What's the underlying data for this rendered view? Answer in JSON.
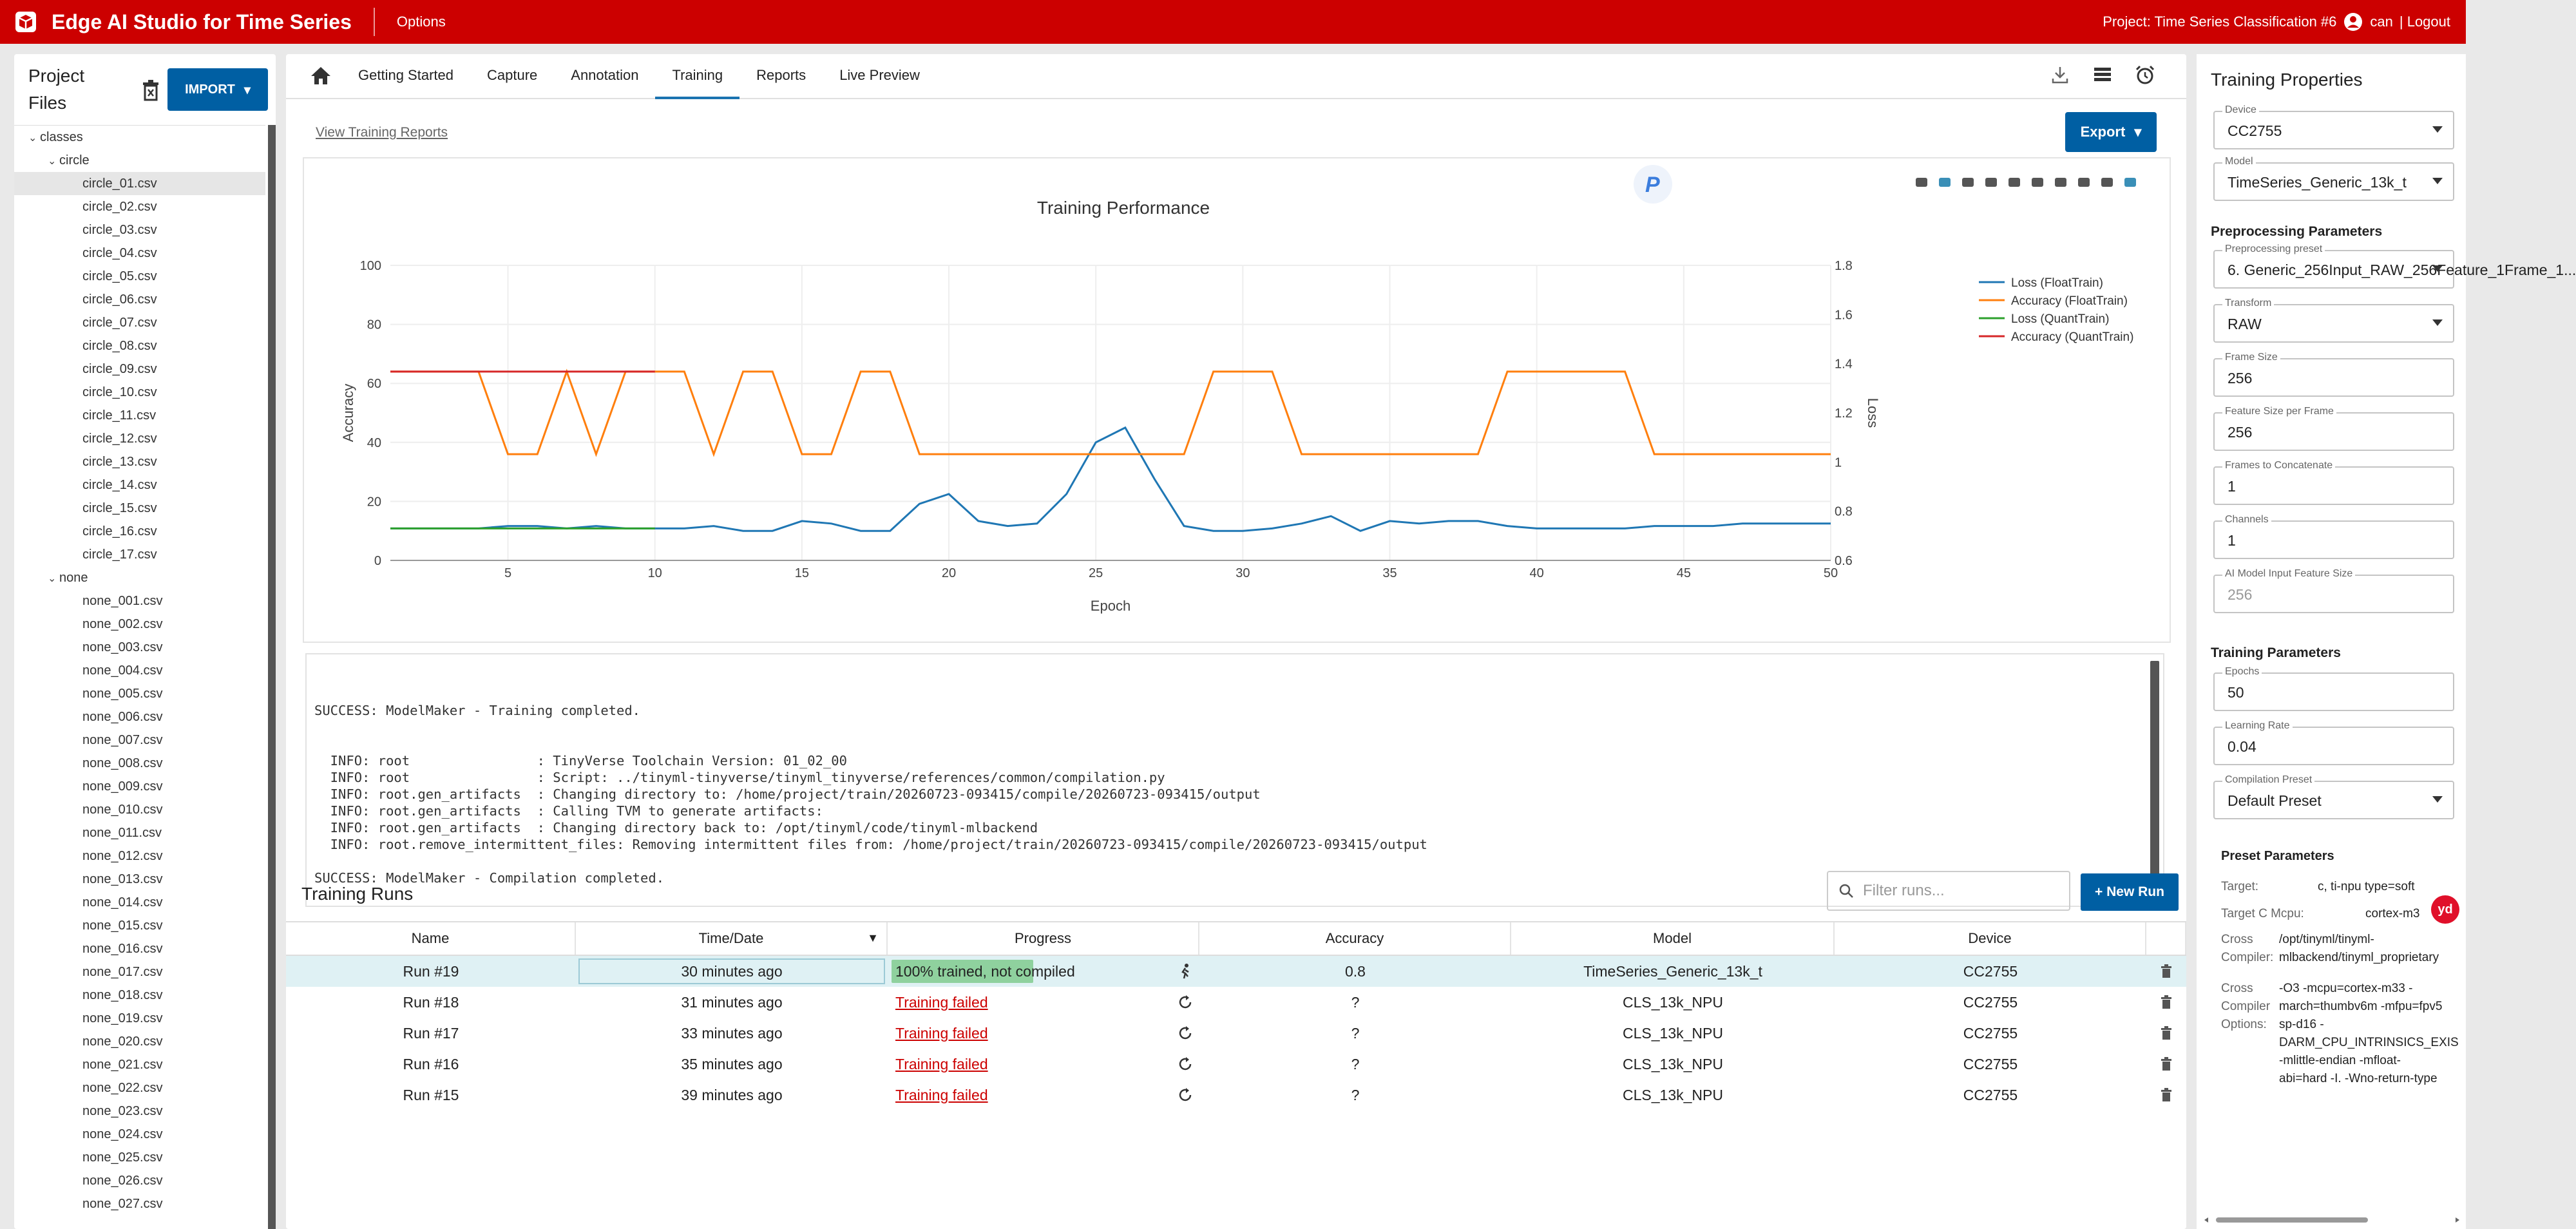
{
  "app": {
    "title": "Edge AI Studio for Time Series",
    "options_label": "Options",
    "project_label": "Project: Time Series Classification #6",
    "user_label": "can",
    "logout_label": "| Logout"
  },
  "colors": {
    "brand_red": "#cc0000",
    "primary_blue": "#005fa3",
    "success_green": "#8fd19e",
    "fail_red": "#cc0000",
    "loss_float": "#1f77b4",
    "accuracy_float": "#ff7f0e",
    "loss_quant": "#2ca02c",
    "accuracy_quant": "#d62728"
  },
  "left_panel": {
    "title_line1": "Project",
    "title_line2": "Files",
    "import_label": "IMPORT",
    "tree": [
      {
        "label": "classes",
        "depth": 0,
        "folder": true
      },
      {
        "label": "circle",
        "depth": 1,
        "folder": true
      },
      {
        "label": "circle_01.csv",
        "depth": 2,
        "selected": true
      },
      {
        "label": "circle_02.csv",
        "depth": 2
      },
      {
        "label": "circle_03.csv",
        "depth": 2
      },
      {
        "label": "circle_04.csv",
        "depth": 2
      },
      {
        "label": "circle_05.csv",
        "depth": 2
      },
      {
        "label": "circle_06.csv",
        "depth": 2
      },
      {
        "label": "circle_07.csv",
        "depth": 2
      },
      {
        "label": "circle_08.csv",
        "depth": 2
      },
      {
        "label": "circle_09.csv",
        "depth": 2
      },
      {
        "label": "circle_10.csv",
        "depth": 2
      },
      {
        "label": "circle_11.csv",
        "depth": 2
      },
      {
        "label": "circle_12.csv",
        "depth": 2
      },
      {
        "label": "circle_13.csv",
        "depth": 2
      },
      {
        "label": "circle_14.csv",
        "depth": 2
      },
      {
        "label": "circle_15.csv",
        "depth": 2
      },
      {
        "label": "circle_16.csv",
        "depth": 2
      },
      {
        "label": "circle_17.csv",
        "depth": 2
      },
      {
        "label": "none",
        "depth": 1,
        "folder": true
      },
      {
        "label": "none_001.csv",
        "depth": 2
      },
      {
        "label": "none_002.csv",
        "depth": 2
      },
      {
        "label": "none_003.csv",
        "depth": 2
      },
      {
        "label": "none_004.csv",
        "depth": 2
      },
      {
        "label": "none_005.csv",
        "depth": 2
      },
      {
        "label": "none_006.csv",
        "depth": 2
      },
      {
        "label": "none_007.csv",
        "depth": 2
      },
      {
        "label": "none_008.csv",
        "depth": 2
      },
      {
        "label": "none_009.csv",
        "depth": 2
      },
      {
        "label": "none_010.csv",
        "depth": 2
      },
      {
        "label": "none_011.csv",
        "depth": 2
      },
      {
        "label": "none_012.csv",
        "depth": 2
      },
      {
        "label": "none_013.csv",
        "depth": 2
      },
      {
        "label": "none_014.csv",
        "depth": 2
      },
      {
        "label": "none_015.csv",
        "depth": 2
      },
      {
        "label": "none_016.csv",
        "depth": 2
      },
      {
        "label": "none_017.csv",
        "depth": 2
      },
      {
        "label": "none_018.csv",
        "depth": 2
      },
      {
        "label": "none_019.csv",
        "depth": 2
      },
      {
        "label": "none_020.csv",
        "depth": 2
      },
      {
        "label": "none_021.csv",
        "depth": 2
      },
      {
        "label": "none_022.csv",
        "depth": 2
      },
      {
        "label": "none_023.csv",
        "depth": 2
      },
      {
        "label": "none_024.csv",
        "depth": 2
      },
      {
        "label": "none_025.csv",
        "depth": 2
      },
      {
        "label": "none_026.csv",
        "depth": 2
      },
      {
        "label": "none_027.csv",
        "depth": 2
      }
    ]
  },
  "nav": {
    "tabs": [
      "Getting Started",
      "Capture",
      "Annotation",
      "Training",
      "Reports",
      "Live Preview"
    ],
    "active_tab": "Training",
    "view_reports_label": "View Training Reports",
    "export_label": "Export"
  },
  "chart_data": {
    "type": "line",
    "title": "Training Performance",
    "xlabel": "Epoch",
    "ylabel": "Accuracy",
    "y2label": "Loss",
    "xlim": [
      1,
      50
    ],
    "ylim": [
      0,
      100
    ],
    "y2lim": [
      0.6,
      1.8
    ],
    "xticks": [
      5,
      10,
      15,
      20,
      25,
      30,
      35,
      40,
      45,
      50
    ],
    "yticks": [
      0,
      20,
      40,
      60,
      80,
      100
    ],
    "y2ticks": [
      0.6,
      0.8,
      1,
      1.2,
      1.4,
      1.6,
      1.8
    ],
    "grid": true,
    "legend_position": "top-right",
    "series": [
      {
        "name": "Loss (FloatTrain)",
        "axis": "y2",
        "x": [
          1,
          2,
          3,
          4,
          5,
          6,
          7,
          8,
          9,
          10,
          11,
          12,
          13,
          14,
          15,
          16,
          17,
          18,
          19,
          20,
          21,
          22,
          23,
          24,
          25,
          26,
          27,
          28,
          29,
          30,
          31,
          32,
          33,
          34,
          35,
          36,
          37,
          38,
          39,
          40,
          41,
          42,
          43,
          44,
          45,
          46,
          47,
          48,
          49,
          50
        ],
        "values": [
          0.73,
          0.73,
          0.73,
          0.73,
          0.74,
          0.74,
          0.73,
          0.74,
          0.73,
          0.73,
          0.73,
          0.74,
          0.72,
          0.72,
          0.76,
          0.75,
          0.72,
          0.72,
          0.83,
          0.87,
          0.76,
          0.74,
          0.75,
          0.87,
          1.08,
          1.14,
          0.93,
          0.74,
          0.72,
          0.72,
          0.73,
          0.75,
          0.78,
          0.72,
          0.76,
          0.75,
          0.76,
          0.76,
          0.74,
          0.73,
          0.73,
          0.73,
          0.73,
          0.74,
          0.74,
          0.74,
          0.75,
          0.75,
          0.75,
          0.75
        ]
      },
      {
        "name": "Accuracy (FloatTrain)",
        "axis": "y",
        "x": [
          1,
          2,
          3,
          4,
          5,
          6,
          7,
          8,
          9,
          10,
          11,
          12,
          13,
          14,
          15,
          16,
          17,
          18,
          19,
          20,
          21,
          22,
          23,
          24,
          25,
          26,
          27,
          28,
          29,
          30,
          31,
          32,
          33,
          34,
          35,
          36,
          37,
          38,
          39,
          40,
          41,
          42,
          43,
          44,
          45,
          46,
          47,
          48,
          49,
          50
        ],
        "values": [
          64,
          64,
          64,
          64,
          36,
          36,
          64,
          36,
          64,
          64,
          64,
          36,
          64,
          64,
          36,
          36,
          64,
          64,
          36,
          36,
          36,
          36,
          36,
          36,
          36,
          36,
          36,
          36,
          64,
          64,
          64,
          36,
          36,
          36,
          36,
          36,
          36,
          36,
          64,
          64,
          64,
          64,
          64,
          36,
          36,
          36,
          36,
          36,
          36,
          36
        ]
      },
      {
        "name": "Loss (QuantTrain)",
        "axis": "y2",
        "x": [
          1,
          2,
          3,
          4,
          5,
          6,
          7,
          8,
          9,
          10
        ],
        "values": [
          0.73,
          0.73,
          0.73,
          0.73,
          0.73,
          0.73,
          0.73,
          0.73,
          0.73,
          0.73
        ]
      },
      {
        "name": "Accuracy (QuantTrain)",
        "axis": "y",
        "x": [
          1,
          2,
          3,
          4,
          5,
          6,
          7,
          8,
          9,
          10
        ],
        "values": [
          64,
          64,
          64,
          64,
          64,
          64,
          64,
          64,
          64,
          64
        ]
      }
    ]
  },
  "console": {
    "lines": [
      "",
      "SUCCESS: ModelMaker - Training completed.",
      "",
      "",
      "  INFO: root                : TinyVerse Toolchain Version: 01_02_00",
      "  INFO: root                : Script: ../tinyml-tinyverse/tinyml_tinyverse/references/common/compilation.py",
      "  INFO: root.gen_artifacts  : Changing directory to: /home/project/train/20260723-093415/compile/20260723-093415/output",
      "  INFO: root.gen_artifacts  : Calling TVM to generate artifacts:",
      "  INFO: root.gen_artifacts  : Changing directory back to: /opt/tinyml/code/tinyml-mlbackend",
      "  INFO: root.remove_intermittent_files: Removing intermittent files from: /home/project/train/20260723-093415/compile/20260723-093415/output",
      "",
      "SUCCESS: ModelMaker - Compilation completed."
    ]
  },
  "runs": {
    "title": "Training Runs",
    "filter_placeholder": "Filter runs...",
    "new_run_label": "+ New Run",
    "columns": [
      "Name",
      "Time/Date",
      "Progress",
      "Accuracy",
      "Model",
      "Device"
    ],
    "rows": [
      {
        "name": "Run #19",
        "time": "30 minutes ago",
        "progress": "100% trained, not compiled",
        "progress_fraction": 1.0,
        "status": "ok",
        "status_icon": "running-figure-icon",
        "accuracy": "0.8",
        "model": "TimeSeries_Generic_13k_t",
        "device": "CC2755"
      },
      {
        "name": "Run #18",
        "time": "31 minutes ago",
        "progress": "Training failed",
        "status": "failed",
        "status_icon": "retry-icon",
        "accuracy": "?",
        "model": "CLS_13k_NPU",
        "device": "CC2755"
      },
      {
        "name": "Run #17",
        "time": "33 minutes ago",
        "progress": "Training failed",
        "status": "failed",
        "status_icon": "retry-icon",
        "accuracy": "?",
        "model": "CLS_13k_NPU",
        "device": "CC2755"
      },
      {
        "name": "Run #16",
        "time": "35 minutes ago",
        "progress": "Training failed",
        "status": "failed",
        "status_icon": "retry-icon",
        "accuracy": "?",
        "model": "CLS_13k_NPU",
        "device": "CC2755"
      },
      {
        "name": "Run #15",
        "time": "39 minutes ago",
        "progress": "Training failed",
        "status": "failed",
        "status_icon": "retry-icon",
        "accuracy": "?",
        "model": "CLS_13k_NPU",
        "device": "CC2755"
      }
    ]
  },
  "properties": {
    "title": "Training Properties",
    "device": {
      "label": "Device",
      "value": "CC2755"
    },
    "model": {
      "label": "Model",
      "value": "TimeSeries_Generic_13k_t"
    },
    "preprocessing_title": "Preprocessing Parameters",
    "preprocessing_preset": {
      "label": "Preprocessing preset",
      "value": "6. Generic_256Input_RAW_256Feature_1Frame_1..."
    },
    "transform": {
      "label": "Transform",
      "value": "RAW"
    },
    "frame_size": {
      "label": "Frame Size",
      "value": "256"
    },
    "feature_size": {
      "label": "Feature Size per Frame",
      "value": "256"
    },
    "frames_concat": {
      "label": "Frames to Concatenate",
      "value": "1"
    },
    "channels": {
      "label": "Channels",
      "value": "1"
    },
    "ai_input": {
      "label": "AI Model Input Feature Size",
      "value": "256"
    },
    "training_title": "Training Parameters",
    "epochs": {
      "label": "Epochs",
      "value": "50"
    },
    "learning_rate": {
      "label": "Learning Rate",
      "value": "0.04"
    },
    "compilation_preset": {
      "label": "Compilation Preset",
      "value": "Default Preset"
    },
    "preset_title": "Preset Parameters",
    "target_label": "Target:",
    "target_value": "c, ti-npu type=soft",
    "target_mcpu_label": "Target C Mcpu:",
    "target_mcpu_value": "cortex-m3",
    "cross_compiler_label1": "Cross",
    "cross_compiler_label2": "Compiler:",
    "cross_compiler_value1": "/opt/tinyml/tinyml-",
    "cross_compiler_value2": "mlbackend/tinyml_proprietary",
    "cross_options_label1": "Cross",
    "cross_options_label2": "Compiler",
    "cross_options_label3": "Options:",
    "cross_options_values": [
      "-O3 -mcpu=cortex-m33 -",
      "march=thumbv6m -mfpu=fpv5",
      "sp-d16 -",
      "DARM_CPU_INTRINSICS_EXIS",
      "-mlittle-endian -mfloat-",
      "abi=hard -I. -Wno-return-type"
    ],
    "badge_label": "yd"
  }
}
